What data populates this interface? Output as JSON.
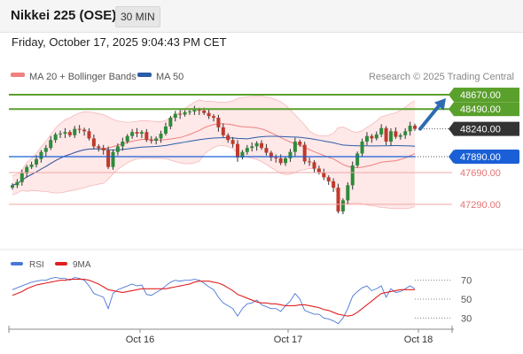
{
  "header": {
    "title": "Nikkei 225 (OSE)",
    "timeframe": "30 MIN"
  },
  "timestamp": "Friday, October 17, 2025 9:04:43 PM CET",
  "legend": {
    "ma20": "MA 20 + Bollinger Bands",
    "ma50": "MA 50",
    "credit": "Research © 2025 Trading Central"
  },
  "rsi_legend": {
    "rsi": "RSI",
    "ma": "9MA"
  },
  "colors": {
    "ma20": "#f08080",
    "ma50": "#2a5ca8",
    "band": "#fde0e0",
    "resistance": "#5aa02c",
    "support": "#e57373",
    "pivot": "#1a5fd6",
    "price": "#333333",
    "rsi": "#4a78d6",
    "rsi_ma": "#e02020",
    "arrow": "#2f6bb0",
    "bull": "#2e8b3a",
    "bear": "#c0392b"
  },
  "chart_data": [
    {
      "type": "candlestick",
      "x_labels": [
        "Oct 16",
        "Oct 17",
        "Oct 18"
      ],
      "ylim": [
        46720,
        48860
      ],
      "levels": [
        {
          "label": "48670.00",
          "value": 48670,
          "kind": "resistance"
        },
        {
          "label": "48490.00",
          "value": 48490,
          "kind": "resistance"
        },
        {
          "label": "48240.00",
          "value": 48240,
          "kind": "price"
        },
        {
          "label": "47890.00",
          "value": 47890,
          "kind": "pivot"
        },
        {
          "label": "47690.00",
          "value": 47690,
          "kind": "support"
        },
        {
          "label": "47290.00",
          "value": 47290,
          "kind": "support"
        }
      ],
      "close_estimates": [
        47530,
        47570,
        47680,
        47760,
        47790,
        47860,
        47950,
        48000,
        48100,
        48170,
        48180,
        48200,
        48160,
        48240,
        48230,
        48210,
        48120,
        48020,
        48000,
        47970,
        47760,
        47950,
        48020,
        48080,
        48150,
        48200,
        48180,
        48200,
        48100,
        48090,
        48120,
        48180,
        48270,
        48380,
        48430,
        48420,
        48450,
        48460,
        48480,
        48470,
        48440,
        48400,
        48380,
        48260,
        48160,
        48100,
        48050,
        47880,
        47950,
        48000,
        48020,
        48060,
        48000,
        47940,
        47880,
        47870,
        47810,
        47870,
        47950,
        48080,
        48040,
        47830,
        47820,
        47740,
        47690,
        47630,
        47580,
        47500,
        47200,
        47340,
        47530,
        47780,
        47930,
        48080,
        48150,
        48120,
        48170,
        48250,
        48080,
        48210,
        48140,
        48160,
        48210,
        48280,
        48240
      ]
    },
    {
      "type": "line",
      "name": "RSI",
      "ylim": [
        20,
        80
      ],
      "y_ticks": [
        "70",
        "50",
        "30"
      ],
      "series": [
        {
          "name": "RSI",
          "values": [
            60,
            62,
            64,
            66,
            68,
            69,
            70,
            70,
            72,
            73,
            72,
            72,
            70,
            73,
            72,
            70,
            64,
            56,
            54,
            52,
            40,
            56,
            60,
            62,
            64,
            66,
            64,
            65,
            55,
            54,
            57,
            60,
            64,
            68,
            70,
            69,
            70,
            70,
            71,
            70,
            67,
            63,
            60,
            52,
            46,
            43,
            40,
            32,
            40,
            45,
            46,
            49,
            44,
            42,
            40,
            40,
            37,
            43,
            48,
            56,
            50,
            38,
            36,
            34,
            34,
            30,
            29,
            27,
            24,
            30,
            40,
            53,
            58,
            62,
            64,
            59,
            61,
            64,
            52,
            61,
            57,
            58,
            61,
            64,
            61
          ]
        },
        {
          "name": "9MA",
          "values": [
            54,
            56,
            58,
            61,
            63,
            65,
            66,
            67,
            68,
            69,
            70,
            70,
            71,
            71,
            71,
            71,
            70,
            68,
            66,
            63,
            60,
            59,
            58,
            57,
            58,
            59,
            60,
            61,
            61,
            61,
            61,
            61,
            61,
            62,
            63,
            64,
            65,
            66,
            68,
            69,
            69,
            69,
            68,
            67,
            65,
            62,
            59,
            55,
            53,
            51,
            49,
            47,
            46,
            46,
            45,
            45,
            44,
            43,
            43,
            43,
            44,
            44,
            43,
            42,
            41,
            39,
            38,
            36,
            34,
            33,
            32,
            33,
            36,
            40,
            44,
            48,
            52,
            56,
            57,
            58,
            59,
            60,
            60,
            60,
            60
          ]
        }
      ]
    }
  ]
}
